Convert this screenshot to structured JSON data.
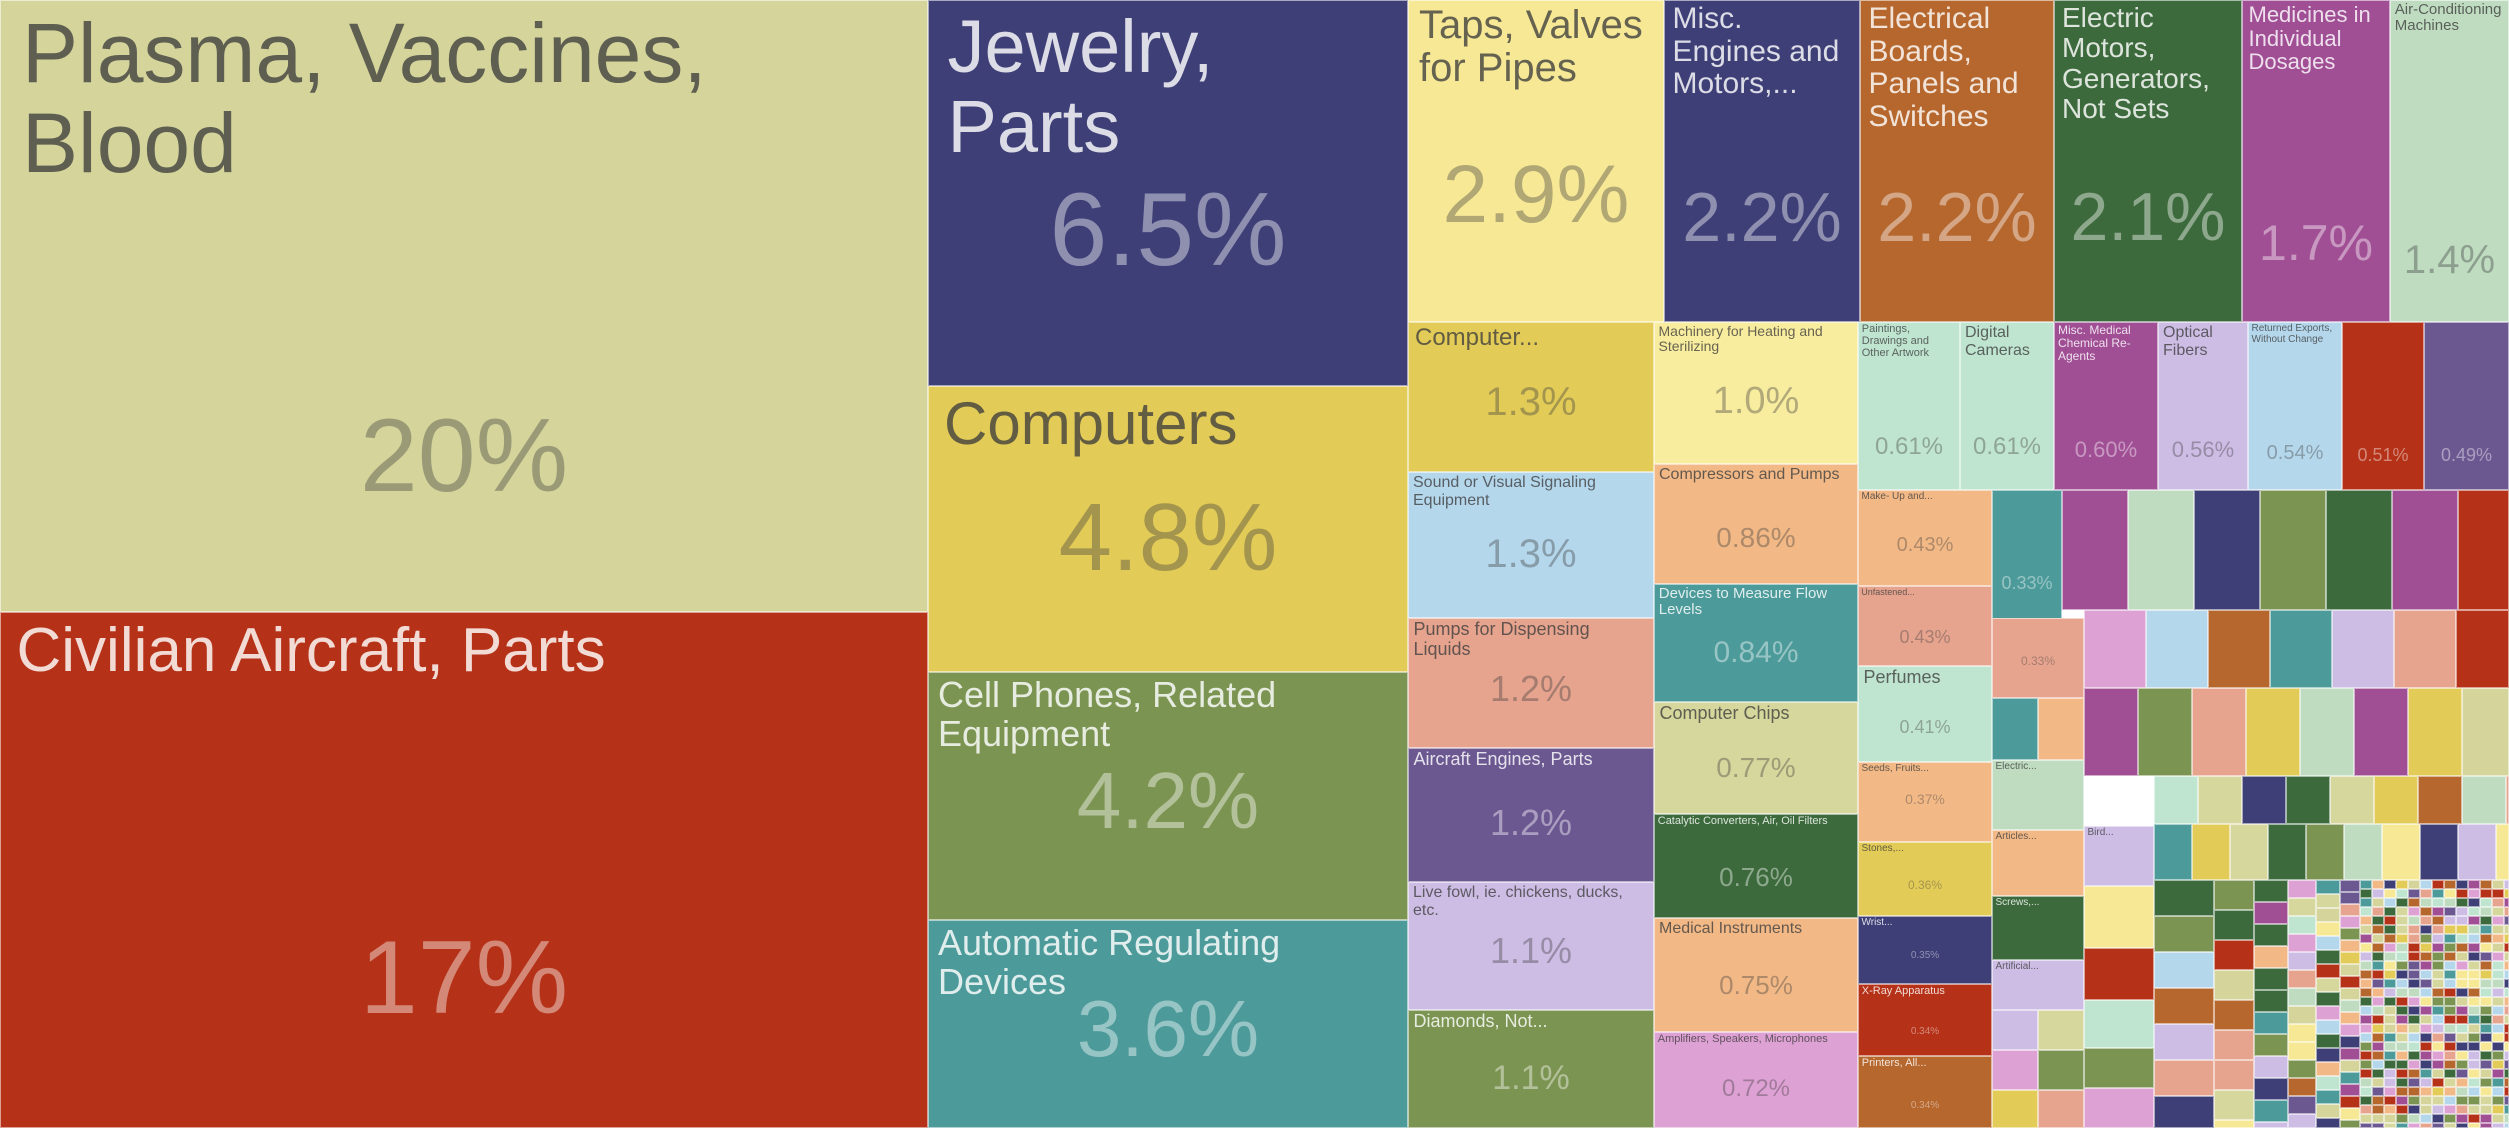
{
  "chart_data": {
    "type": "treemap",
    "title": "",
    "items": [
      {
        "label": "Plasma, Vaccines, Blood",
        "value": 20,
        "value_text": "20%",
        "color": "#d4d49b"
      },
      {
        "label": "Civilian Aircraft, Parts",
        "value": 17,
        "value_text": "17%",
        "color": "#b53218"
      },
      {
        "label": "Jewelry, Parts",
        "value": 6.5,
        "value_text": "6.5%",
        "color": "#3e3f77"
      },
      {
        "label": "Computers",
        "value": 4.8,
        "value_text": "4.8%",
        "color": "#e3cb57"
      },
      {
        "label": "Cell Phones, Related Equipment",
        "value": 4.2,
        "value_text": "4.2%",
        "color": "#7c9452"
      },
      {
        "label": "Automatic Regulating Devices",
        "value": 3.6,
        "value_text": "3.6%",
        "color": "#4d9a9a"
      },
      {
        "label": "Taps, Valves for Pipes",
        "value": 2.9,
        "value_text": "2.9%",
        "color": "#f7e896"
      },
      {
        "label": "Misc. Engines and Motors,...",
        "value": 2.2,
        "value_text": "2.2%",
        "color": "#3e3f77"
      },
      {
        "label": "Electrical Boards, Panels and Switches",
        "value": 2.2,
        "value_text": "2.2%",
        "color": "#b5672d"
      },
      {
        "label": "Electric Motors, Generators, Not Sets",
        "value": 2.1,
        "value_text": "2.1%",
        "color": "#3c6a3c"
      },
      {
        "label": "Medicines in Individual Dosages",
        "value": 1.7,
        "value_text": "1.7%",
        "color": "#a04f95"
      },
      {
        "label": "Air-Conditioning Machines",
        "value": 1.4,
        "value_text": "1.4%",
        "color": "#bfdcc0"
      },
      {
        "label": "Computer...",
        "value": 1.3,
        "value_text": "1.3%",
        "color": "#e3cb57"
      },
      {
        "label": "Sound or Visual Signaling Equipment",
        "value": 1.3,
        "value_text": "1.3%",
        "color": "#b5d7ec"
      },
      {
        "label": "Pumps for Dispensing Liquids",
        "value": 1.2,
        "value_text": "1.2%",
        "color": "#e6a48e"
      },
      {
        "label": "Aircraft Engines, Parts",
        "value": 1.2,
        "value_text": "1.2%",
        "color": "#6c5891"
      },
      {
        "label": "Live fowl, ie. chickens, ducks, etc.",
        "value": 1.1,
        "value_text": "1.1%",
        "color": "#cdbde5"
      },
      {
        "label": "Diamonds, Not...",
        "value": 1.1,
        "value_text": "1.1%",
        "color": "#7c9452"
      },
      {
        "label": "Machinery for Heating and Sterilizing",
        "value": 1.0,
        "value_text": "1.0%",
        "color": "#f8ec9e"
      },
      {
        "label": "Compressors and Pumps",
        "value": 0.86,
        "value_text": "0.86%",
        "color": "#f2b987"
      },
      {
        "label": "Devices to Measure Flow Levels",
        "value": 0.84,
        "value_text": "0.84%",
        "color": "#4d9a9a"
      },
      {
        "label": "Computer Chips",
        "value": 0.77,
        "value_text": "0.77%",
        "color": "#d6d79c"
      },
      {
        "label": "Catalytic Converters, Air, Oil Filters",
        "value": 0.76,
        "value_text": "0.76%",
        "color": "#3c6a3c"
      },
      {
        "label": "Medical Instruments",
        "value": 0.75,
        "value_text": "0.75%",
        "color": "#f2b987"
      },
      {
        "label": "Amplifiers, Speakers, Microphones",
        "value": 0.72,
        "value_text": "0.72%",
        "color": "#dea1d4"
      },
      {
        "label": "Paintings, Drawings and Other Artwork",
        "value": 0.61,
        "value_text": "0.61%",
        "color": "#bfe4cf"
      },
      {
        "label": "Digital Cameras",
        "value": 0.61,
        "value_text": "0.61%",
        "color": "#bfe4cf"
      },
      {
        "label": "Misc. Medical Chemical Re-Agents",
        "value": 0.6,
        "value_text": "0.60%",
        "color": "#a04f95"
      },
      {
        "label": "Optical Fibers",
        "value": 0.56,
        "value_text": "0.56%",
        "color": "#cdbde5"
      },
      {
        "label": "Returned Exports, Without Change",
        "value": 0.54,
        "value_text": "0.54%",
        "color": "#b5d7ec"
      },
      {
        "label": "",
        "value": 0.51,
        "value_text": "0.51%",
        "color": "#b53218"
      },
      {
        "label": "",
        "value": 0.49,
        "value_text": "0.49%",
        "color": "#6c5891"
      },
      {
        "label": "Make- Up and...",
        "value": 0.43,
        "value_text": "0.43%",
        "color": "#f2b987"
      },
      {
        "label": "Unfastened...",
        "value": 0.43,
        "value_text": "0.43%",
        "color": "#e6a48e"
      },
      {
        "label": "",
        "value": 0.33,
        "value_text": "0.33%",
        "color": "#4d9a9a"
      },
      {
        "label": "",
        "value": 0.33,
        "value_text": "0.33%",
        "color": "#e6a48e"
      },
      {
        "label": "Perfumes",
        "value": 0.41,
        "value_text": "0.41%",
        "color": "#bfe4cf"
      },
      {
        "label": "Seeds, Fruits...",
        "value": 0.37,
        "value_text": "0.37%",
        "color": "#f2b987"
      },
      {
        "label": "Stones,...",
        "value": 0.36,
        "value_text": "0.36%",
        "color": "#e3cb57"
      },
      {
        "label": "Wrist...",
        "value": 0.35,
        "value_text": "0.35%",
        "color": "#3e3f77"
      },
      {
        "label": "X-Ray Apparatus",
        "value": 0.34,
        "value_text": "0.34%",
        "color": "#b53218"
      },
      {
        "label": "Printers, All...",
        "value": 0.34,
        "value_text": "0.34%",
        "color": "#b5672d"
      },
      {
        "label": "Electric...",
        "value": null,
        "value_text": "",
        "color": "#bfdcc0"
      },
      {
        "label": "Articles...",
        "value": null,
        "value_text": "",
        "color": "#f2b987"
      },
      {
        "label": "Screws,...",
        "value": null,
        "value_text": "",
        "color": "#3c6a3c"
      },
      {
        "label": "Artificial...",
        "value": null,
        "value_text": "",
        "color": "#cdbde5"
      },
      {
        "label": "Bird...",
        "value": null,
        "value_text": "",
        "color": "#cdbde5"
      }
    ],
    "palette": [
      "#d4d49b",
      "#b53218",
      "#3e3f77",
      "#e3cb57",
      "#7c9452",
      "#4d9a9a",
      "#f7e896",
      "#b5672d",
      "#3c6a3c",
      "#a04f95",
      "#bfdcc0",
      "#b5d7ec",
      "#e6a48e",
      "#6c5891",
      "#cdbde5",
      "#f2b987",
      "#dea1d4",
      "#bfe4cf",
      "#d6d79c"
    ]
  }
}
